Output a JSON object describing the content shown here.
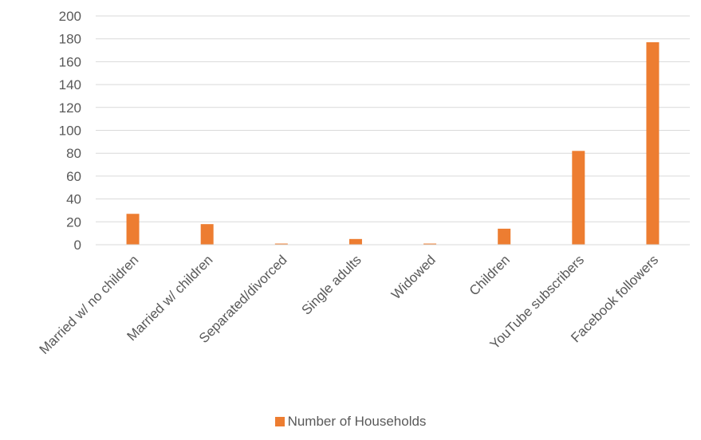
{
  "chart_data": {
    "type": "bar",
    "categories": [
      "Married w/ no children",
      "Married w/ children",
      "Separated/divorced",
      "Single adults",
      "Widowed",
      "Children",
      "YouTube subscribers",
      "Facebook followers"
    ],
    "series": [
      {
        "name": "Number of Households",
        "values": [
          27,
          18,
          1,
          5,
          1,
          14,
          82,
          177
        ],
        "color": "#ED7D31"
      }
    ],
    "yticks": [
      "0",
      "20",
      "40",
      "60",
      "80",
      "100",
      "120",
      "140",
      "160",
      "180",
      "200"
    ],
    "ylim": [
      0,
      200
    ],
    "grid": true,
    "legend_position": "bottom"
  }
}
